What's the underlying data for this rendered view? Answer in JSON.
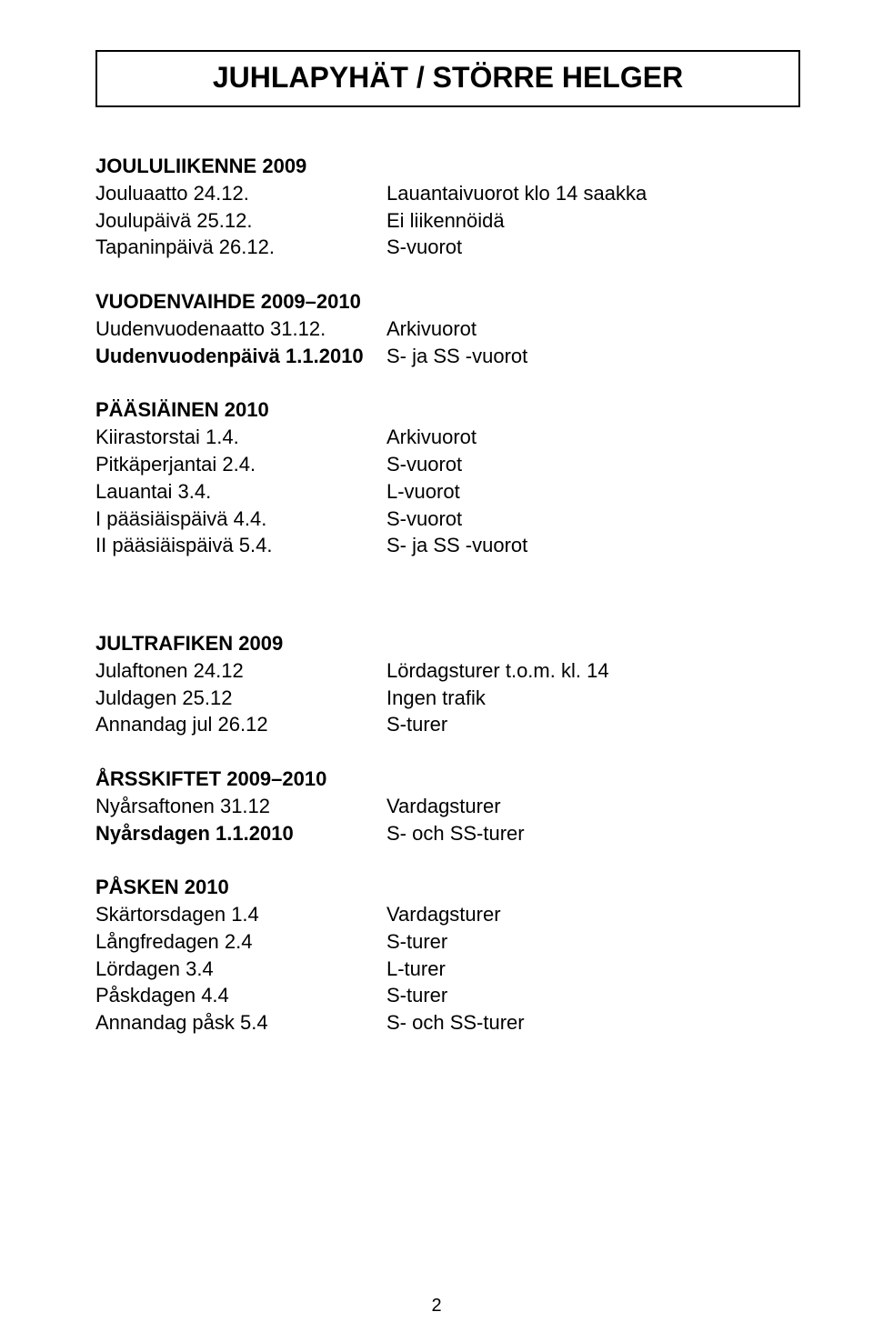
{
  "title": "JUHLAPYHÄT / STÖRRE HELGER",
  "sections": {
    "joulu": {
      "heading": "JOULULIIKENNE 2009",
      "rows": [
        {
          "left": "Jouluaatto 24.12.",
          "right": "Lauantaivuorot klo 14 saakka"
        },
        {
          "left": "Joulupäivä 25.12.",
          "right": "Ei liikennöidä"
        },
        {
          "left": "Tapaninpäivä 26.12.",
          "right": "S-vuorot"
        }
      ]
    },
    "vuodenvaihde": {
      "heading": "VUODENVAIHDE 2009–2010",
      "rows": [
        {
          "left": "Uudenvuodenaatto 31.12.",
          "right": "Arkivuorot"
        },
        {
          "left": "Uudenvuodenpäivä 1.1.2010",
          "right": "S- ja SS -vuorot"
        }
      ]
    },
    "paasiainen": {
      "heading": "PÄÄSIÄINEN 2010",
      "rows": [
        {
          "left": "Kiirastorstai 1.4.",
          "right": "Arkivuorot"
        },
        {
          "left": "Pitkäperjantai 2.4.",
          "right": "S-vuorot"
        },
        {
          "left": "Lauantai 3.4.",
          "right": "L-vuorot"
        },
        {
          "left": "I pääsiäispäivä 4.4.",
          "right": "S-vuorot"
        },
        {
          "left": "II pääsiäispäivä 5.4.",
          "right": "S- ja SS -vuorot"
        }
      ]
    },
    "jultrafiken": {
      "heading": "JULTRAFIKEN 2009",
      "rows": [
        {
          "left": "Julaftonen 24.12",
          "right": "Lördagsturer t.o.m. kl. 14"
        },
        {
          "left": "Juldagen 25.12",
          "right": "Ingen trafik"
        },
        {
          "left": "Annandag jul 26.12",
          "right": "S-turer"
        }
      ]
    },
    "arsskiftet": {
      "heading": "ÅRSSKIFTET 2009–2010",
      "rows": [
        {
          "left": "Nyårsaftonen 31.12",
          "right": "Vardagsturer"
        },
        {
          "left": "Nyårsdagen 1.1.2010",
          "right": "S- och SS-turer"
        }
      ]
    },
    "pasken": {
      "heading": "PÅSKEN 2010",
      "rows": [
        {
          "left": "Skärtorsdagen 1.4",
          "right": "Vardagsturer"
        },
        {
          "left": "Långfredagen 2.4",
          "right": "S-turer"
        },
        {
          "left": "Lördagen 3.4",
          "right": "L-turer"
        },
        {
          "left": "Påskdagen 4.4",
          "right": "S-turer"
        },
        {
          "left": "Annandag påsk 5.4",
          "right": "S- och SS-turer"
        }
      ]
    }
  },
  "page_number": "2"
}
